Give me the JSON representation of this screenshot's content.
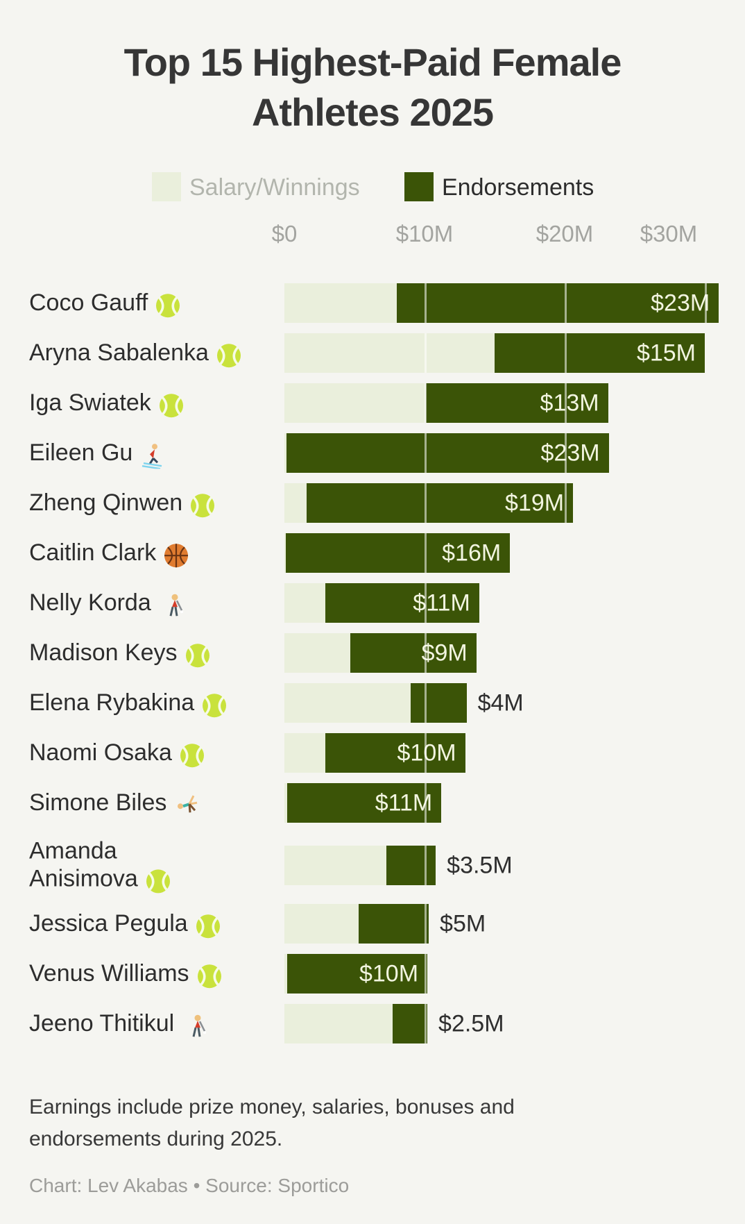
{
  "title": "Top 15 Highest-Paid Female\nAthletes 2025",
  "legend": {
    "salary_label": "Salary/Winnings",
    "endorsements_label": "Endorsements"
  },
  "colors": {
    "background": "#f5f5f1",
    "salary_fill": "#eaefdc",
    "endorsements_fill": "#3b5407",
    "inside_label": "#f2f5e0",
    "outside_label": "#2e2e2e"
  },
  "chart_data": {
    "type": "bar",
    "orientation": "horizontal",
    "stacked": true,
    "unit": "$M (USD millions)",
    "x_ticks": [
      0,
      10,
      20,
      30
    ],
    "x_tick_labels": [
      "$0",
      "$10M",
      "$20M",
      "$30M"
    ],
    "xlim": [
      0,
      32.8
    ],
    "grid": "ticks shown as light lines over bars",
    "legend_position": "top",
    "series_names": [
      "Salary/Winnings",
      "Endorsements"
    ],
    "athletes": [
      {
        "name": "Coco Gauff",
        "icon": "tennis-ball",
        "salary_m": 8.0,
        "endorsements_m": 23,
        "total_m": 31.0,
        "label": "$23M",
        "label_inside": true
      },
      {
        "name": "Aryna Sabalenka",
        "icon": "tennis-ball",
        "salary_m": 15.0,
        "endorsements_m": 15,
        "total_m": 30.0,
        "label": "$15M",
        "label_inside": true
      },
      {
        "name": "Iga Swiatek",
        "icon": "tennis-ball",
        "salary_m": 10.1,
        "endorsements_m": 13,
        "total_m": 23.1,
        "label": "$13M",
        "label_inside": true
      },
      {
        "name": "Eileen Gu",
        "icon": "skier",
        "salary_m": 0.15,
        "endorsements_m": 23,
        "total_m": 23.1,
        "label": "$23M",
        "label_inside": true
      },
      {
        "name": "Zheng Qinwen",
        "icon": "tennis-ball",
        "salary_m": 1.6,
        "endorsements_m": 19,
        "total_m": 20.6,
        "label": "$19M",
        "label_inside": true
      },
      {
        "name": "Caitlin Clark",
        "icon": "basketball",
        "salary_m": 0.1,
        "endorsements_m": 16,
        "total_m": 16.1,
        "label": "$16M",
        "label_inside": true
      },
      {
        "name": "Nelly Korda",
        "icon": "woman-golfing",
        "salary_m": 2.9,
        "endorsements_m": 11,
        "total_m": 13.9,
        "label": "$11M",
        "label_inside": true
      },
      {
        "name": "Madison Keys",
        "icon": "tennis-ball",
        "salary_m": 4.7,
        "endorsements_m": 9,
        "total_m": 13.7,
        "label": "$9M",
        "label_inside": true
      },
      {
        "name": "Elena Rybakina",
        "icon": "tennis-ball",
        "salary_m": 9.0,
        "endorsements_m": 4,
        "total_m": 13.0,
        "label": "$4M",
        "label_inside": false
      },
      {
        "name": "Naomi Osaka",
        "icon": "tennis-ball",
        "salary_m": 2.9,
        "endorsements_m": 10,
        "total_m": 12.9,
        "label": "$10M",
        "label_inside": true
      },
      {
        "name": "Simone Biles",
        "icon": "cartwheel",
        "salary_m": 0.2,
        "endorsements_m": 11,
        "total_m": 11.2,
        "label": "$11M",
        "label_inside": true
      },
      {
        "name": "Amanda\nAnisimova",
        "icon": "tennis-ball",
        "salary_m": 7.3,
        "endorsements_m": 3.5,
        "total_m": 10.8,
        "label": "$3.5M",
        "label_inside": false
      },
      {
        "name": "Jessica Pegula",
        "icon": "tennis-ball",
        "salary_m": 5.3,
        "endorsements_m": 5,
        "total_m": 10.3,
        "label": "$5M",
        "label_inside": false
      },
      {
        "name": "Venus Williams",
        "icon": "tennis-ball",
        "salary_m": 0.2,
        "endorsements_m": 10,
        "total_m": 10.2,
        "label": "$10M",
        "label_inside": true
      },
      {
        "name": "Jeeno Thitikul",
        "icon": "woman-golfing",
        "salary_m": 7.7,
        "endorsements_m": 2.5,
        "total_m": 10.2,
        "label": "$2.5M",
        "label_inside": false
      }
    ]
  },
  "footer": {
    "note": "Earnings include prize money, salaries, bonuses and\nendorsements during 2025.",
    "credit": "Chart: Lev Akabas • Source: Sportico"
  }
}
